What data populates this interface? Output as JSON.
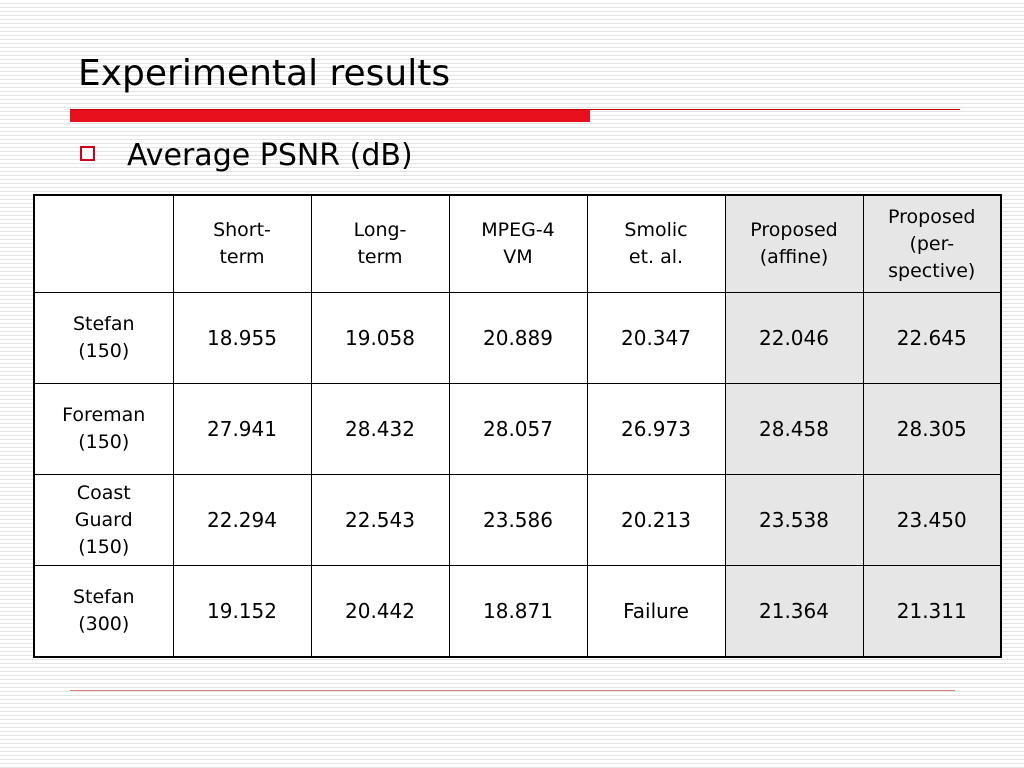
{
  "slide": {
    "title": "Experimental results",
    "bullet": "Average PSNR (dB)"
  },
  "table": {
    "headers": [
      "",
      "Short-\nterm",
      "Long-\nterm",
      "MPEG-4\nVM",
      "Smolic\net. al.",
      "Proposed\n(affine)",
      "Proposed\n(per-\nspective)"
    ],
    "rows": [
      {
        "label": "Stefan\n(150)",
        "values": [
          "18.955",
          "19.058",
          "20.889",
          "20.347",
          "22.046",
          "22.645"
        ]
      },
      {
        "label": "Foreman\n(150)",
        "values": [
          "27.941",
          "28.432",
          "28.057",
          "26.973",
          "28.458",
          "28.305"
        ]
      },
      {
        "label": "Coast\nGuard\n(150)",
        "values": [
          "22.294",
          "22.543",
          "23.586",
          "20.213",
          "23.538",
          "23.450"
        ]
      },
      {
        "label": "Stefan\n(300)",
        "values": [
          "19.152",
          "20.442",
          "18.871",
          "Failure",
          "21.364",
          "21.311"
        ]
      }
    ]
  },
  "colors": {
    "accent_red": "#e8101c",
    "highlight_gray": "#e6e6e6"
  }
}
